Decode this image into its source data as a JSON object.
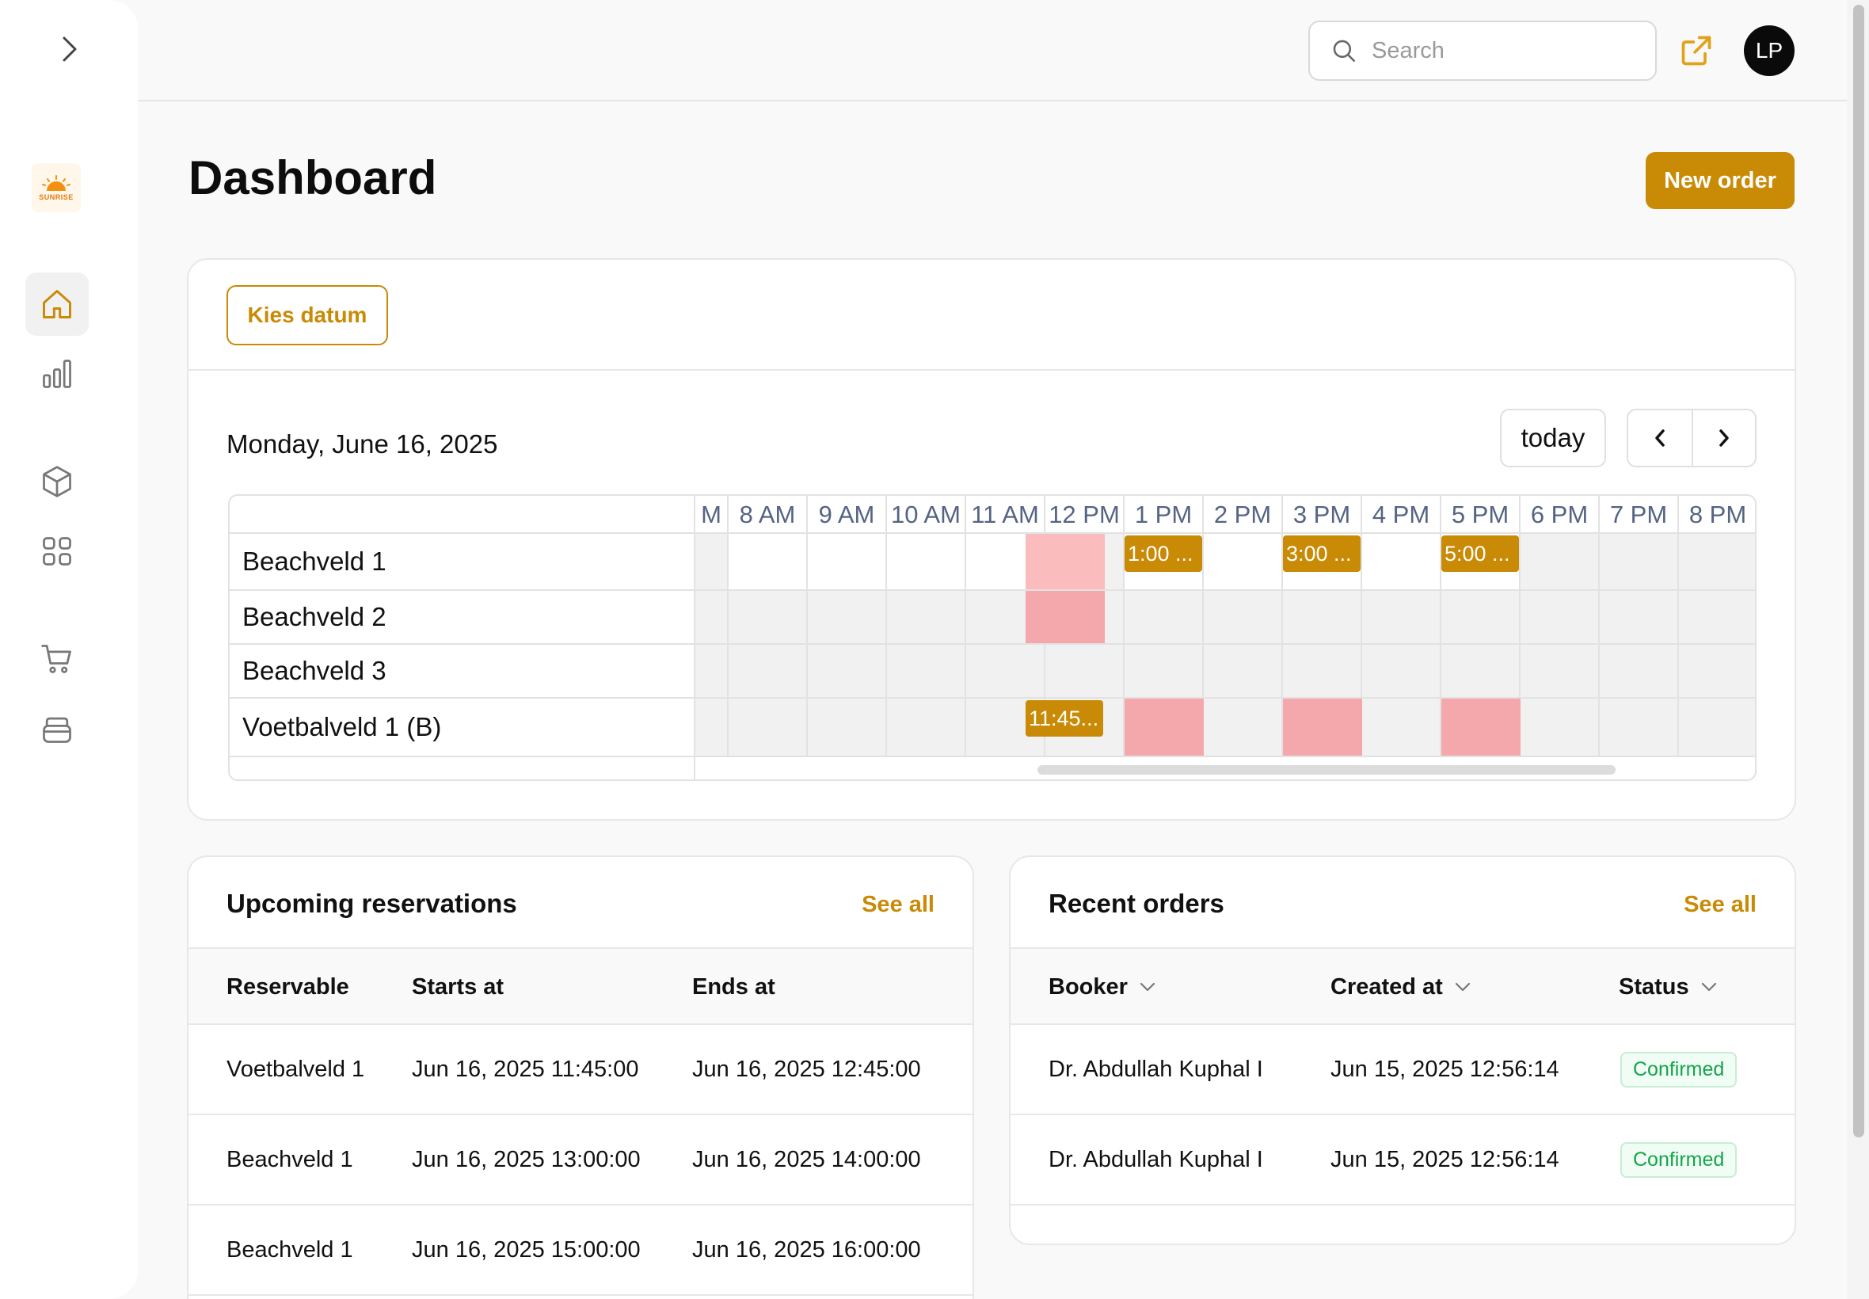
{
  "topbar": {
    "search_placeholder": "Search",
    "avatar_initials": "LP"
  },
  "sidebar": {
    "logo_text": "SUNRISE",
    "items": [
      {
        "name": "home",
        "icon": "home-icon",
        "active": true
      },
      {
        "name": "analytics",
        "icon": "bar-chart-icon",
        "active": false
      },
      {
        "name": "products",
        "icon": "cube-icon",
        "active": false
      },
      {
        "name": "apps",
        "icon": "grid-icon",
        "active": false
      },
      {
        "name": "cart",
        "icon": "cart-icon",
        "active": false
      },
      {
        "name": "archive",
        "icon": "archive-icon",
        "active": false
      }
    ]
  },
  "header": {
    "title": "Dashboard",
    "new_order_label": "New order"
  },
  "calendar": {
    "date_button_label": "Kies datum",
    "current_date": "Monday, June 16, 2025",
    "today_label": "today",
    "time_labels": [
      "M",
      "8 AM",
      "9 AM",
      "10 AM",
      "11 AM",
      "12 PM",
      "1 PM",
      "2 PM",
      "3 PM",
      "4 PM",
      "5 PM",
      "6 PM",
      "7 PM",
      "8 PM"
    ],
    "resources": [
      "Beachveld 1",
      "Beachveld 2",
      "Beachveld 3",
      "Voetbalveld 1 (B)"
    ],
    "events": [
      {
        "resource": 0,
        "label": "1:00 ...",
        "start_hour": 13.0,
        "end_hour": 14.0
      },
      {
        "resource": 0,
        "label": "3:00 ...",
        "start_hour": 15.0,
        "end_hour": 16.0
      },
      {
        "resource": 0,
        "label": "5:00 ...",
        "start_hour": 17.0,
        "end_hour": 18.0
      },
      {
        "resource": 3,
        "label": "11:45...",
        "start_hour": 11.75,
        "end_hour": 12.75
      }
    ],
    "blocked": [
      {
        "resource": 0,
        "start_hour": 11.75,
        "end_hour": 12.75
      },
      {
        "resource": 1,
        "start_hour": 11.75,
        "end_hour": 12.75
      },
      {
        "resource": 3,
        "start_hour": 13.0,
        "end_hour": 14.0
      },
      {
        "resource": 3,
        "start_hour": 15.0,
        "end_hour": 16.0
      },
      {
        "resource": 3,
        "start_hour": 17.0,
        "end_hour": 18.0
      }
    ],
    "open_hours_resource0": [
      8,
      9,
      10,
      11,
      13,
      14,
      15,
      16,
      17
    ]
  },
  "reservations": {
    "title": "Upcoming reservations",
    "see_all": "See all",
    "columns": [
      "Reservable",
      "Starts at",
      "Ends at"
    ],
    "rows": [
      [
        "Voetbalveld 1",
        "Jun 16, 2025 11:45:00",
        "Jun 16, 2025 12:45:00"
      ],
      [
        "Beachveld 1",
        "Jun 16, 2025 13:00:00",
        "Jun 16, 2025 14:00:00"
      ],
      [
        "Beachveld 1",
        "Jun 16, 2025 15:00:00",
        "Jun 16, 2025 16:00:00"
      ]
    ]
  },
  "orders": {
    "title": "Recent orders",
    "see_all": "See all",
    "columns": [
      "Booker",
      "Created at",
      "Status"
    ],
    "rows": [
      [
        "Dr. Abdullah Kuphal I",
        "Jun 15, 2025 12:56:14",
        "Confirmed"
      ],
      [
        "Dr. Abdullah Kuphal I",
        "Jun 15, 2025 12:56:14",
        "Confirmed"
      ]
    ]
  },
  "colors": {
    "accent": "#c98a05",
    "blocked": "#f5a8ab",
    "confirmed": "#16a34a"
  }
}
